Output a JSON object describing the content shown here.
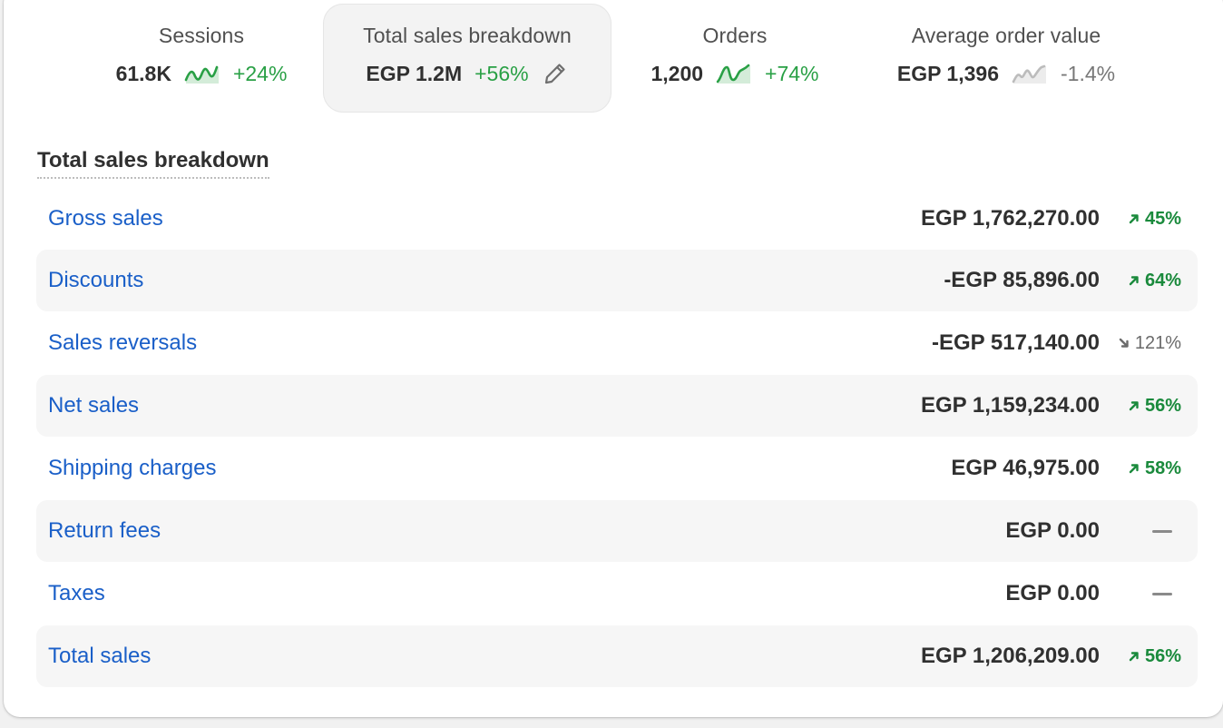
{
  "metrics": [
    {
      "label": "Sessions",
      "value": "61.8K",
      "delta": "+24%",
      "trend": "up",
      "sparkline_color": "#29a045"
    },
    {
      "label": "Total sales breakdown",
      "value": "EGP 1.2M",
      "delta": "+56%",
      "trend": "up",
      "selected": true,
      "icon": "pencil-icon"
    },
    {
      "label": "Orders",
      "value": "1,200",
      "delta": "+74%",
      "trend": "up",
      "sparkline_color": "#29a045"
    },
    {
      "label": "Average order value",
      "value": "EGP 1,396",
      "delta": "-1.4%",
      "trend": "down",
      "sparkline_color": "#bcbcbc"
    }
  ],
  "section": {
    "title": "Total sales breakdown"
  },
  "rows": [
    {
      "label": "Gross sales",
      "value": "EGP 1,762,270.00",
      "change": "45%",
      "direction": "up"
    },
    {
      "label": "Discounts",
      "value": "-EGP 85,896.00",
      "change": "64%",
      "direction": "up"
    },
    {
      "label": "Sales reversals",
      "value": "-EGP 517,140.00",
      "change": "121%",
      "direction": "down"
    },
    {
      "label": "Net sales",
      "value": "EGP 1,159,234.00",
      "change": "56%",
      "direction": "up"
    },
    {
      "label": "Shipping charges",
      "value": "EGP 46,975.00",
      "change": "58%",
      "direction": "up"
    },
    {
      "label": "Return fees",
      "value": "EGP 0.00",
      "change": "",
      "direction": "none"
    },
    {
      "label": "Taxes",
      "value": "EGP 0.00",
      "change": "",
      "direction": "none"
    },
    {
      "label": "Total sales",
      "value": "EGP 1,206,209.00",
      "change": "56%",
      "direction": "up"
    }
  ],
  "colors": {
    "link": "#1a5fc8",
    "positive": "#1a8a3c",
    "neutral": "#6b6b6b",
    "row_shade": "#f6f6f6"
  }
}
